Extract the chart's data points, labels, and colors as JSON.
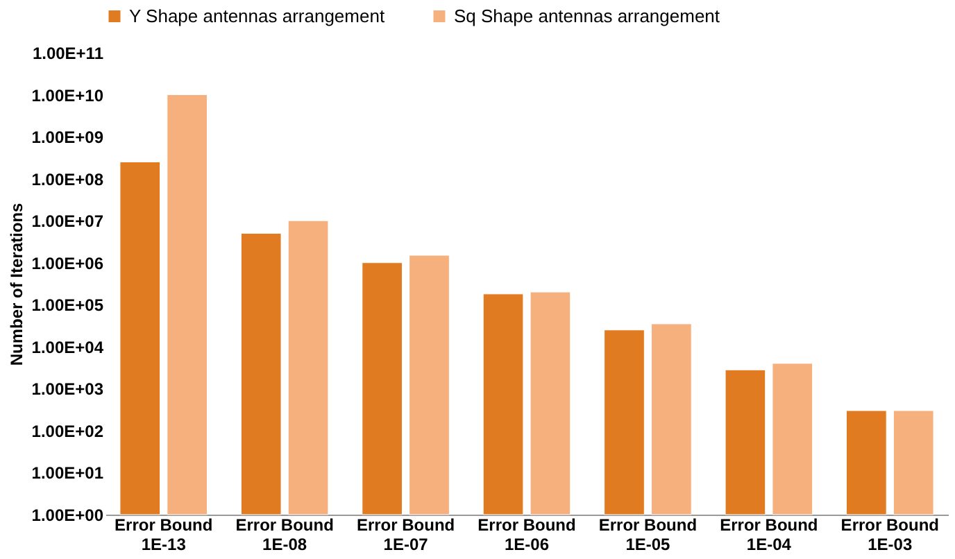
{
  "chart_data": {
    "type": "bar",
    "ylabel": "Number of Iterations",
    "categories": [
      "Error Bound\n1E-13",
      "Error Bound\n1E-08",
      "Error Bound\n1E-07",
      "Error Bound\n1E-06",
      "Error Bound\n1E-05",
      "Error Bound\n1E-04",
      "Error Bound\n1E-03"
    ],
    "series": [
      {
        "name": "Y Shape antennas arrangement",
        "color": "#e07b22",
        "values": [
          250000000,
          5000000,
          1000000,
          180000,
          25000,
          2800,
          300
        ]
      },
      {
        "name": "Sq Shape antennas arrangement",
        "color": "#f6b07e",
        "values": [
          10000000000,
          10000000,
          1500000,
          200000,
          35000,
          4000,
          300
        ]
      }
    ],
    "log": true,
    "ylim": [
      1,
      100000000000
    ],
    "yticks": [
      {
        "value": 1,
        "label": "1.00E+00"
      },
      {
        "value": 10,
        "label": "1.00E+01"
      },
      {
        "value": 100,
        "label": "1.00E+02"
      },
      {
        "value": 1000,
        "label": "1.00E+03"
      },
      {
        "value": 10000,
        "label": "1.00E+04"
      },
      {
        "value": 100000,
        "label": "1.00E+05"
      },
      {
        "value": 1000000,
        "label": "1.00E+06"
      },
      {
        "value": 10000000,
        "label": "1.00E+07"
      },
      {
        "value": 100000000,
        "label": "1.00E+08"
      },
      {
        "value": 1000000000,
        "label": "1.00E+09"
      },
      {
        "value": 10000000000,
        "label": "1.00E+10"
      },
      {
        "value": 100000000000,
        "label": "1.00E+11"
      }
    ],
    "grid": false,
    "legend": "top"
  }
}
